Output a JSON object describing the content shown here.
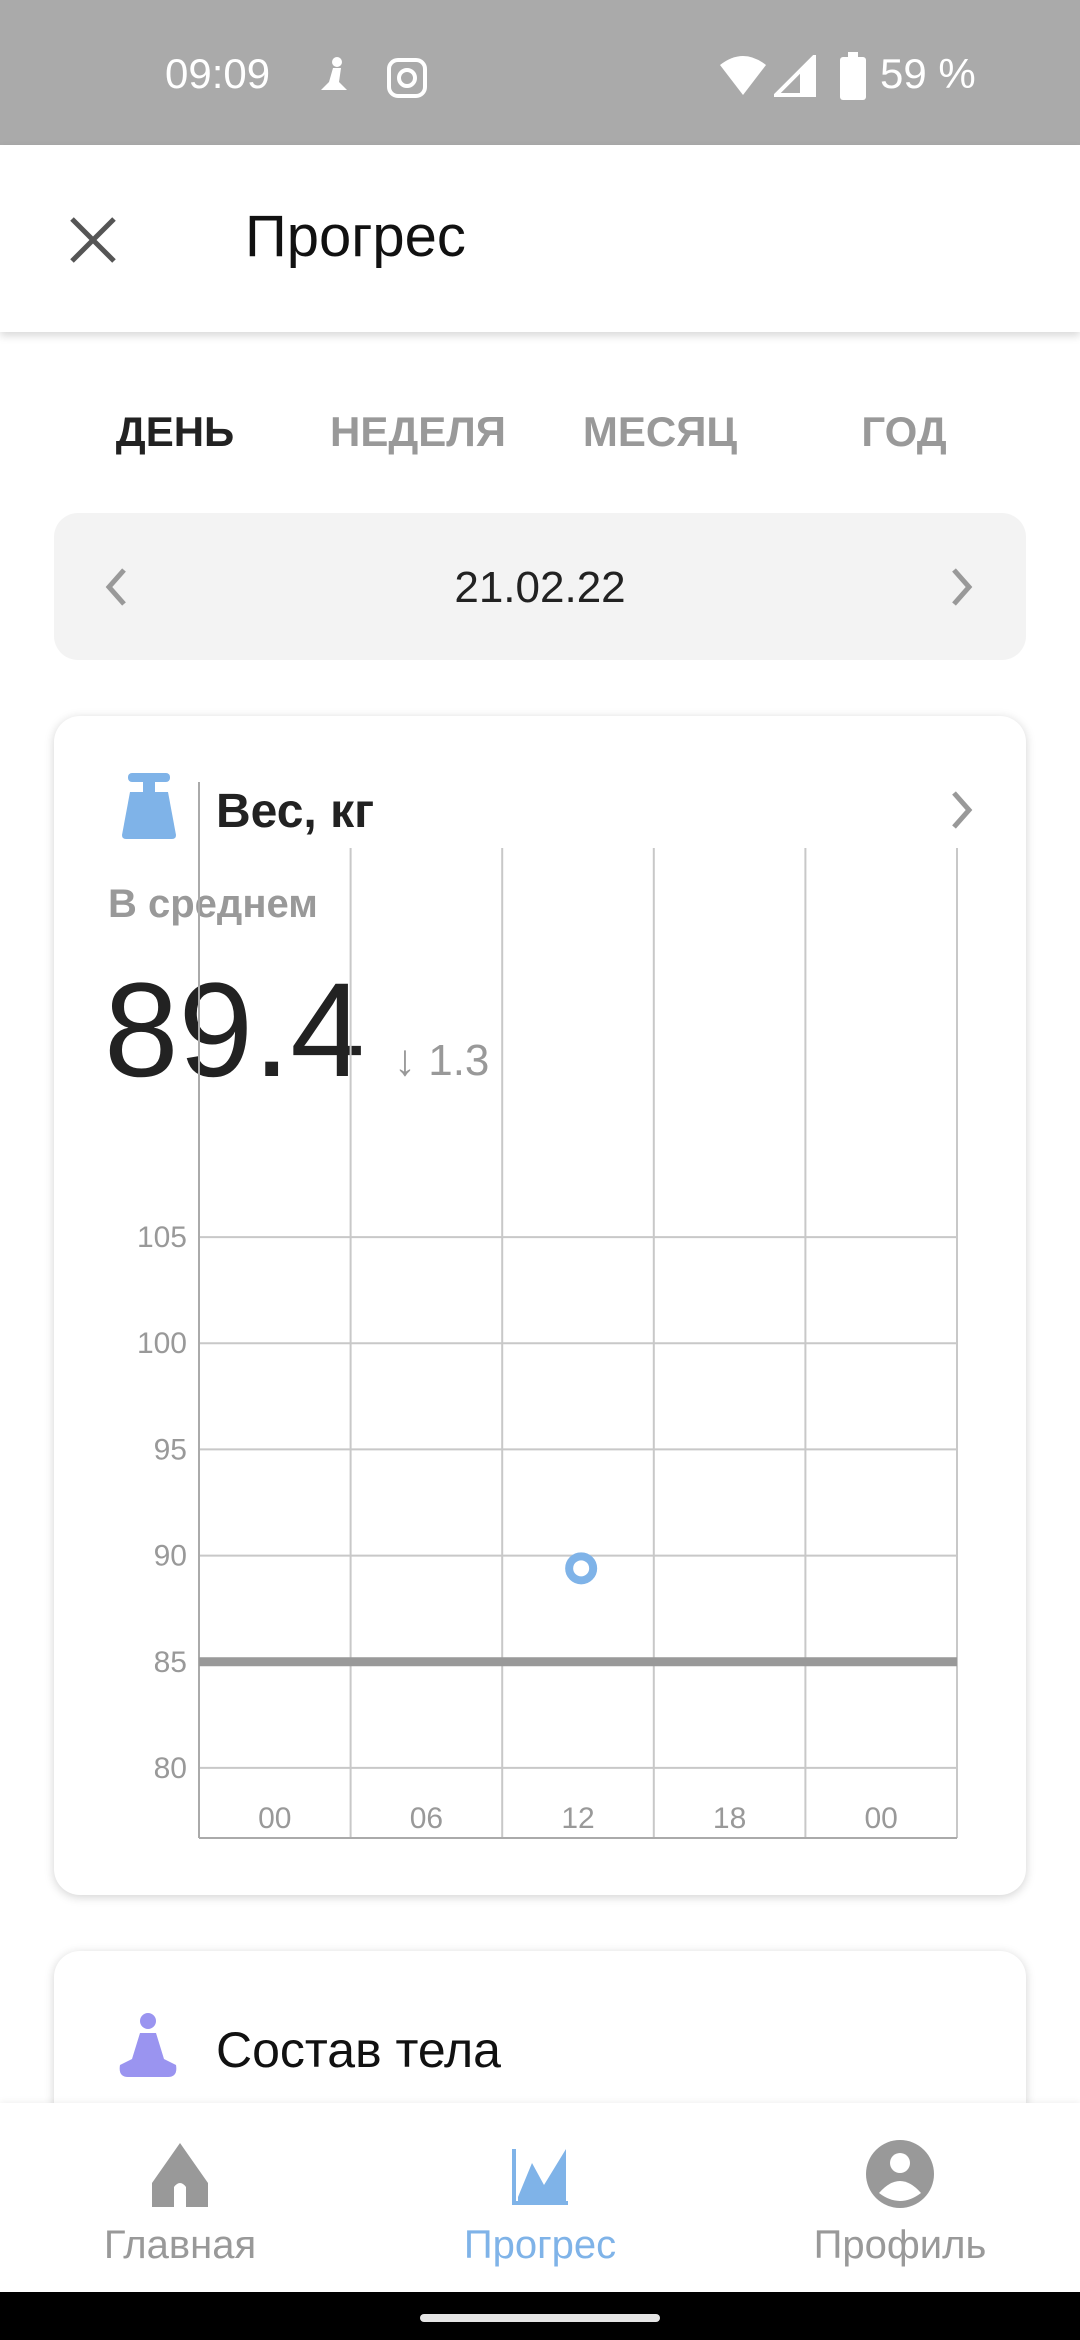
{
  "status_bar": {
    "time": "09:09",
    "battery": "59 %"
  },
  "app_bar": {
    "title": "Прогрес"
  },
  "period_tabs": [
    {
      "label": "ДЕНЬ",
      "active": true
    },
    {
      "label": "НЕДЕЛЯ",
      "active": false
    },
    {
      "label": "МЕСЯЦ",
      "active": false
    },
    {
      "label": "ГОД",
      "active": false
    }
  ],
  "date_selector": {
    "date": "21.02.22"
  },
  "weight_card": {
    "title": "Вес, кг",
    "subtitle": "В среднем",
    "value": "89.4",
    "change": "↓ 1.3",
    "icon_color": "#7fb3e8"
  },
  "chart_data": {
    "type": "scatter",
    "x_tick_labels": [
      "00",
      "06",
      "12",
      "18",
      "00"
    ],
    "y_ticks": [
      105,
      100,
      95,
      90,
      85,
      80
    ],
    "ylim": [
      76.7,
      108.3
    ],
    "xlim": [
      0,
      24
    ],
    "grid": true,
    "points": [
      {
        "x": 12.1,
        "y": 89.4
      }
    ],
    "reference_line": 85,
    "point_color": "#7fb3e8",
    "reference_color": "#999999"
  },
  "body_card": {
    "title": "Состав тела",
    "icon_color": "#9a94f0"
  },
  "bottom_nav": [
    {
      "label": "Главная",
      "active": false
    },
    {
      "label": "Прогрес",
      "active": true
    },
    {
      "label": "Профиль",
      "active": false
    }
  ],
  "accent_color": "#7fb3e8"
}
